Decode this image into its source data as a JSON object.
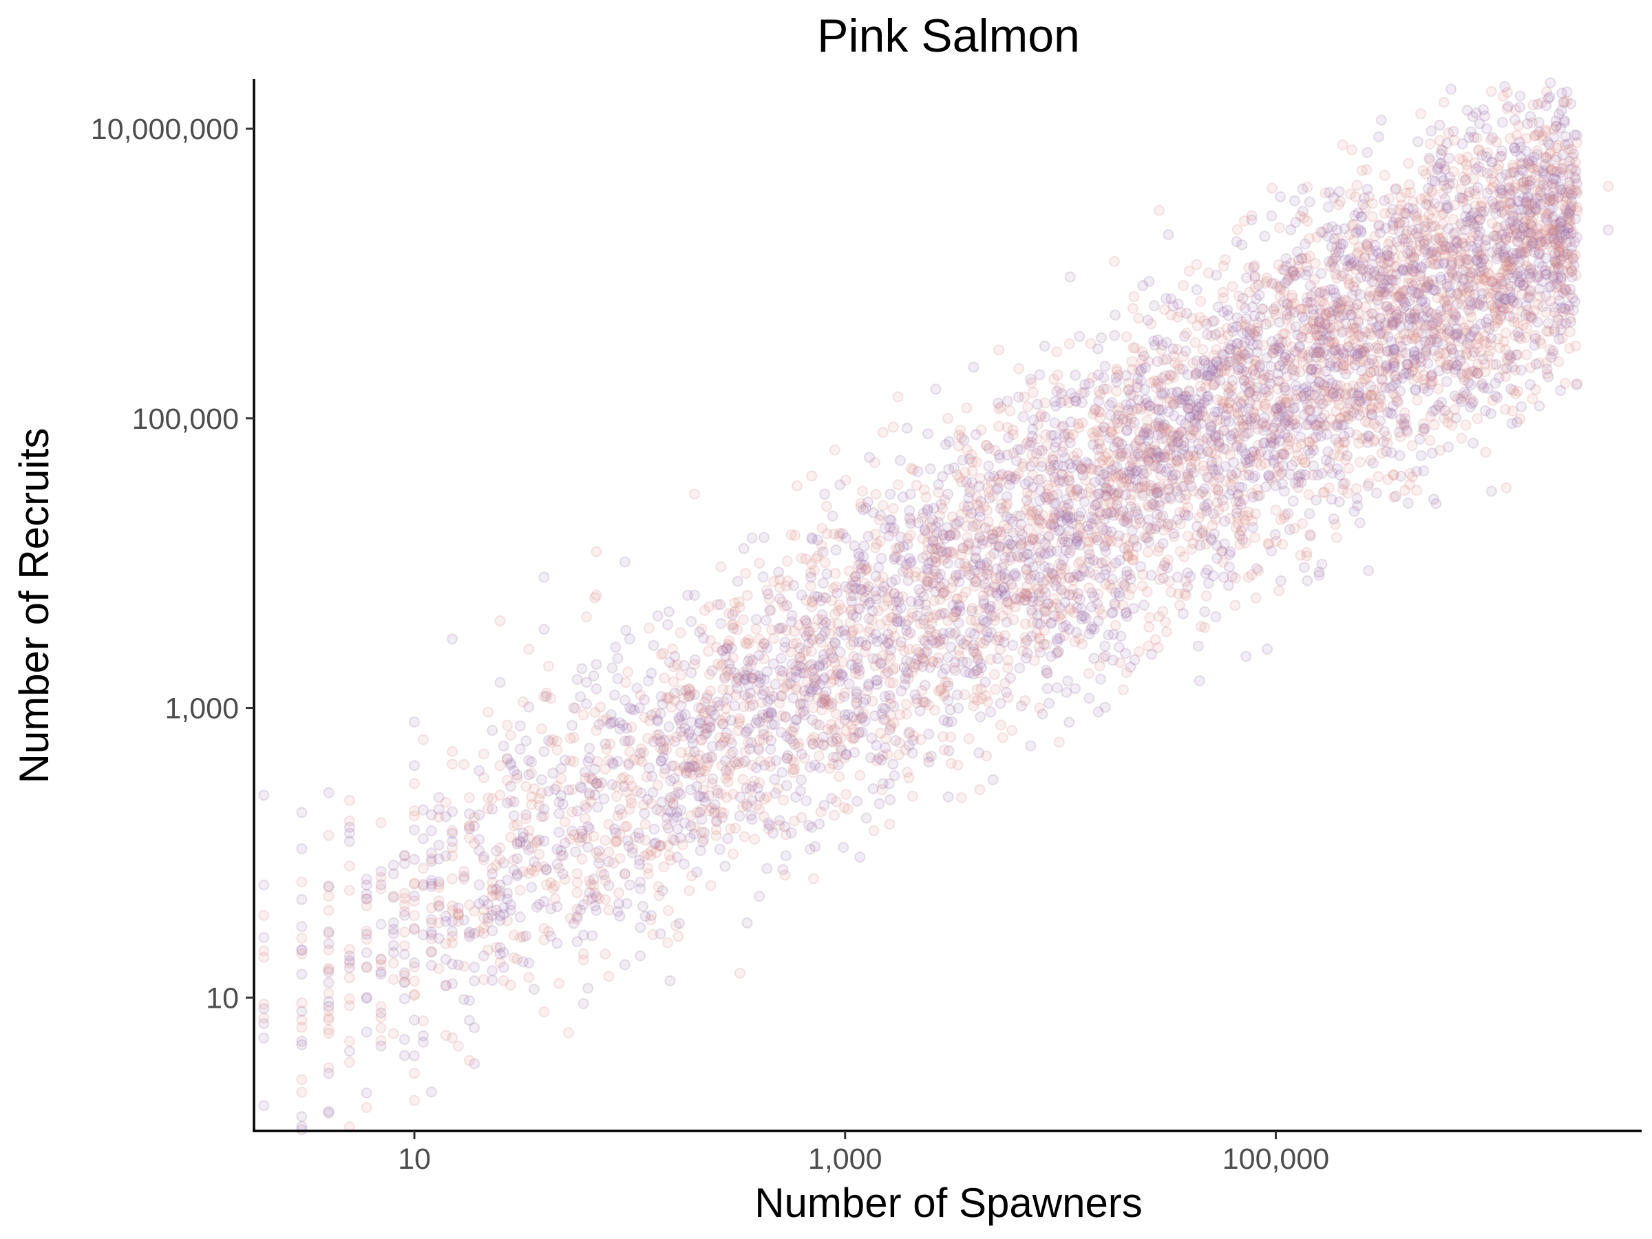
{
  "chart_data": {
    "type": "scatter",
    "title": "Pink Salmon",
    "xlabel": "Number of Spawners",
    "ylabel": "Number of Recruits",
    "x_scale": "log10",
    "y_scale": "log10",
    "xlim": [
      1.8,
      5000000
    ],
    "ylim": [
      1.2,
      22000000
    ],
    "x_ticks": [
      {
        "value": 10,
        "label": "10"
      },
      {
        "value": 1000,
        "label": "1,000"
      },
      {
        "value": 100000,
        "label": "100,000"
      }
    ],
    "y_ticks": [
      {
        "value": 10,
        "label": "10"
      },
      {
        "value": 1000,
        "label": "1,000"
      },
      {
        "value": 100000,
        "label": "100,000"
      },
      {
        "value": 10000000,
        "label": "10,000,000"
      }
    ],
    "grid": false,
    "legend": "none",
    "point_colors": [
      "#9b6fa8",
      "#d98a86"
    ],
    "point_opacity": 0.13,
    "trend": {
      "description": "strong positive log-log relationship",
      "points_approx": 6000
    },
    "series": [
      {
        "values": [
          [
            1,
            15
          ],
          [
            1,
            25
          ],
          [
            1,
            68
          ],
          [
            1,
            88
          ],
          [
            2,
            60
          ],
          [
            2,
            37
          ],
          [
            2,
            26
          ],
          [
            2,
            9
          ],
          [
            2,
            250
          ],
          [
            2,
            19
          ],
          [
            3,
            190
          ],
          [
            3,
            20
          ],
          [
            3,
            5
          ],
          [
            3,
            7
          ],
          [
            4,
            3
          ],
          [
            4,
            40
          ],
          [
            4,
            260
          ],
          [
            4,
            6
          ],
          [
            5,
            150
          ],
          [
            5,
            230
          ],
          [
            5,
            120
          ],
          [
            5,
            55
          ],
          [
            5,
            18
          ],
          [
            5,
            5
          ],
          [
            10,
            7
          ],
          [
            10,
            300
          ],
          [
            10,
            90
          ],
          [
            10,
            180
          ],
          [
            10,
            30
          ],
          [
            10,
            13
          ],
          [
            10,
            400
          ],
          [
            10,
            3
          ],
          [
            10,
            800
          ],
          [
            15,
            500
          ],
          [
            15,
            120
          ],
          [
            15,
            40
          ],
          [
            15,
            3000
          ],
          [
            25,
            90
          ],
          [
            25,
            1500
          ],
          [
            25,
            400
          ],
          [
            25,
            20
          ],
          [
            25,
            4000
          ],
          [
            25,
            60
          ],
          [
            25,
            250
          ],
          [
            40,
            500
          ],
          [
            40,
            1200
          ],
          [
            40,
            200
          ],
          [
            40,
            80
          ],
          [
            40,
            3500
          ],
          [
            40,
            30
          ],
          [
            40,
            8000
          ],
          [
            70,
            700
          ],
          [
            70,
            300
          ],
          [
            70,
            100
          ],
          [
            70,
            2000
          ],
          [
            70,
            12000
          ],
          [
            70,
            40
          ],
          [
            70,
            6000
          ],
          [
            100,
            1000
          ],
          [
            100,
            200
          ],
          [
            100,
            3000
          ],
          [
            100,
            500
          ],
          [
            100,
            60
          ],
          [
            200,
            2000
          ],
          [
            200,
            500
          ],
          [
            200,
            150
          ],
          [
            200,
            6000
          ],
          [
            200,
            30000
          ],
          [
            400,
            1500
          ],
          [
            400,
            3000
          ],
          [
            400,
            800
          ],
          [
            400,
            10000
          ],
          [
            400,
            50
          ],
          [
            400,
            200
          ],
          [
            700,
            2000
          ],
          [
            700,
            5000
          ],
          [
            700,
            15000
          ],
          [
            700,
            600
          ],
          [
            700,
            150
          ],
          [
            700,
            40000
          ],
          [
            1500,
            3000
          ],
          [
            1500,
            8000
          ],
          [
            1500,
            1000
          ],
          [
            1500,
            25000
          ],
          [
            1500,
            300
          ],
          [
            1500,
            80000
          ],
          [
            3000,
            10000
          ],
          [
            3000,
            4000
          ],
          [
            3000,
            30000
          ],
          [
            3000,
            1500
          ],
          [
            3000,
            800
          ],
          [
            3000,
            100000
          ],
          [
            8000,
            20000
          ],
          [
            8000,
            60000
          ],
          [
            8000,
            8000
          ],
          [
            8000,
            3000
          ],
          [
            8000,
            200000
          ],
          [
            8000,
            1000
          ],
          [
            15000,
            30000
          ],
          [
            15000,
            80000
          ],
          [
            15000,
            200000
          ],
          [
            15000,
            10000
          ],
          [
            15000,
            4000
          ],
          [
            35000,
            50000
          ],
          [
            35000,
            150000
          ],
          [
            35000,
            300000
          ],
          [
            35000,
            20000
          ],
          [
            35000,
            500000
          ],
          [
            35000,
            8000
          ],
          [
            80000,
            100000
          ],
          [
            80000,
            200000
          ],
          [
            80000,
            400000
          ],
          [
            80000,
            40000
          ],
          [
            80000,
            800000
          ],
          [
            200000,
            300000
          ],
          [
            200000,
            600000
          ],
          [
            200000,
            1500000
          ],
          [
            200000,
            100000
          ],
          [
            500000,
            800000
          ],
          [
            500000,
            2000000
          ],
          [
            500000,
            3000000
          ],
          [
            500000,
            300000
          ],
          [
            1500000,
            1000000
          ],
          [
            1500000,
            3000000
          ],
          [
            1500000,
            6000000
          ],
          [
            1500000,
            500000
          ],
          [
            3500000,
            2000000
          ],
          [
            3500000,
            4000000
          ]
        ]
      }
    ]
  }
}
